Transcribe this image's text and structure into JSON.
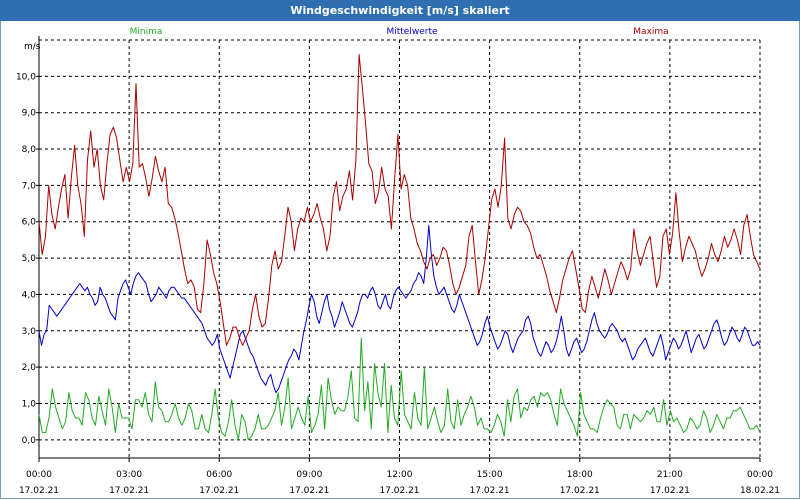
{
  "window": {
    "title": "Windgeschwindigkeit [m/s] skaliert"
  },
  "chart_data": {
    "type": "line",
    "ylabel": "m/s",
    "ylim": [
      -0.5,
      11.0
    ],
    "xlim": [
      0,
      24
    ],
    "grid": true,
    "yticks": [
      "0,0",
      "1,0",
      "2,0",
      "3,0",
      "4,0",
      "5,0",
      "6,0",
      "7,0",
      "8,0",
      "9,0",
      "10,0"
    ],
    "xticks": [
      {
        "time": "00:00",
        "date": "17.02.21"
      },
      {
        "time": "03:00",
        "date": "17.02.21"
      },
      {
        "time": "06:00",
        "date": "17.02.21"
      },
      {
        "time": "09:00",
        "date": "17.02.21"
      },
      {
        "time": "12:00",
        "date": "17.02.21"
      },
      {
        "time": "15:00",
        "date": "17.02.21"
      },
      {
        "time": "18:00",
        "date": "17.02.21"
      },
      {
        "time": "21:00",
        "date": "17.02.21"
      },
      {
        "time": "00:00",
        "date": "18.02.21"
      }
    ],
    "series": [
      {
        "name": "Minima",
        "color": "#22aa22",
        "values": [
          0.7,
          0.2,
          0.2,
          0.6,
          1.4,
          0.9,
          0.6,
          0.3,
          0.5,
          1.3,
          0.8,
          0.6,
          0.6,
          0.4,
          1.3,
          1.1,
          0.6,
          0.4,
          1.2,
          0.8,
          0.4,
          1.4,
          0.9,
          0.2,
          1.0,
          0.6,
          0.6,
          0.6,
          0.3,
          1.1,
          1.1,
          0.9,
          1.3,
          0.7,
          0.5,
          1.6,
          0.9,
          0.8,
          0.5,
          0.5,
          0.7,
          1.0,
          0.6,
          0.4,
          0.6,
          1.0,
          0.8,
          0.3,
          0.3,
          0.7,
          0.3,
          0.2,
          0.7,
          1.4,
          0.6,
          0.2,
          0.1,
          0.5,
          1.1,
          0.4,
          0.0,
          0.7,
          0.5,
          0.0,
          0.1,
          0.3,
          0.7,
          0.3,
          0.3,
          0.4,
          0.6,
          0.8,
          1.3,
          0.4,
          0.9,
          1.7,
          0.3,
          0.6,
          0.9,
          0.6,
          0.4,
          1.2,
          0.2,
          0.4,
          0.7,
          1.5,
          0.3,
          1.7,
          1.1,
          0.7,
          0.9,
          0.8,
          0.8,
          1.2,
          1.9,
          0.6,
          0.5,
          2.8,
          0.8,
          1.6,
          0.3,
          2.1,
          1.3,
          0.9,
          2.1,
          0.2,
          1.5,
          0.6,
          0.4,
          1.9,
          0.7,
          0.5,
          0.3,
          1.3,
          0.6,
          0.4,
          2.0,
          0.3,
          0.6,
          0.9,
          0.5,
          0.2,
          0.4,
          1.4,
          0.5,
          0.3,
          1.1,
          0.4,
          0.7,
          0.9,
          1.2,
          0.9,
          0.4,
          0.6,
          0.3,
          0.3,
          0.2,
          0.4,
          0.7,
          0.5,
          0.1,
          1.1,
          0.5,
          1.2,
          1.4,
          0.6,
          0.9,
          0.8,
          1.1,
          1.2,
          0.9,
          1.3,
          1.2,
          1.3,
          1.1,
          0.7,
          0.4,
          1.4,
          1.0,
          0.8,
          0.6,
          0.4,
          0.1,
          1.3,
          0.7,
          0.5,
          0.3,
          0.3,
          0.2,
          0.6,
          0.9,
          1.1,
          1.0,
          0.9,
          0.4,
          0.3,
          0.7,
          0.7,
          0.3,
          0.7,
          0.6,
          0.5,
          0.6,
          0.8,
          0.7,
          0.9,
          0.5,
          0.5,
          1.1,
          0.4,
          0.8,
          0.5,
          0.6,
          0.4,
          0.2,
          0.3,
          0.6,
          0.5,
          0.3,
          0.4,
          0.8,
          0.6,
          0.2,
          0.4,
          0.7,
          0.5,
          0.3,
          0.6,
          0.6,
          0.8,
          0.8,
          0.9,
          0.7,
          0.5,
          0.3,
          0.3,
          0.4,
          0.2
        ]
      },
      {
        "name": "Mittelwerte",
        "color": "#0000cc",
        "values": [
          3.0,
          2.6,
          2.9,
          3.0,
          3.7,
          3.6,
          3.5,
          3.4,
          3.5,
          3.6,
          3.7,
          3.8,
          3.9,
          4.0,
          4.1,
          4.2,
          4.3,
          4.2,
          4.1,
          4.2,
          4.0,
          3.9,
          3.7,
          3.8,
          4.2,
          4.0,
          3.9,
          3.7,
          3.5,
          3.4,
          3.3,
          3.9,
          4.1,
          4.3,
          4.4,
          4.2,
          4.0,
          4.3,
          4.5,
          4.6,
          4.5,
          4.4,
          4.3,
          4.0,
          3.8,
          3.9,
          4.0,
          4.2,
          4.1,
          4.0,
          3.9,
          4.1,
          4.2,
          4.2,
          4.1,
          4.0,
          3.9,
          3.9,
          3.8,
          3.7,
          3.6,
          3.5,
          3.4,
          3.3,
          3.2,
          3.0,
          2.8,
          2.7,
          2.6,
          2.7,
          2.9,
          2.5,
          2.3,
          2.1,
          1.9,
          1.7,
          2.0,
          2.3,
          2.6,
          2.9,
          3.0,
          2.8,
          2.6,
          2.4,
          2.3,
          2.1,
          1.9,
          1.7,
          1.6,
          1.5,
          1.7,
          1.8,
          1.5,
          1.3,
          1.4,
          1.6,
          1.8,
          2.0,
          2.2,
          2.3,
          2.5,
          2.4,
          2.2,
          2.6,
          3.0,
          3.3,
          3.7,
          4.0,
          3.8,
          3.4,
          3.2,
          3.5,
          3.8,
          4.0,
          3.6,
          3.4,
          3.1,
          3.3,
          3.5,
          3.8,
          3.6,
          3.4,
          3.2,
          3.1,
          3.3,
          3.5,
          3.8,
          4.0,
          4.0,
          3.9,
          4.1,
          4.2,
          4.0,
          3.7,
          3.6,
          3.8,
          4.0,
          3.7,
          3.6,
          3.9,
          4.1,
          4.2,
          4.1,
          4.0,
          3.9,
          4.0,
          4.1,
          4.3,
          4.4,
          4.6,
          4.5,
          4.3,
          5.0,
          5.9,
          5.1,
          4.5,
          4.2,
          4.0,
          4.1,
          4.2,
          4.0,
          3.8,
          3.6,
          3.5,
          3.7,
          4.0,
          3.8,
          3.6,
          3.4,
          3.2,
          3.0,
          2.8,
          2.6,
          2.7,
          2.9,
          3.2,
          3.4,
          3.1,
          2.9,
          2.7,
          2.5,
          2.6,
          2.8,
          3.0,
          2.9,
          2.6,
          2.4,
          2.6,
          2.8,
          2.9,
          3.0,
          3.3,
          3.4,
          3.2,
          2.8,
          2.6,
          2.4,
          2.3,
          2.5,
          2.7,
          2.6,
          2.4,
          2.5,
          2.7,
          3.0,
          3.4,
          3.0,
          2.5,
          2.3,
          2.5,
          2.7,
          2.8,
          2.6,
          2.4,
          2.5,
          2.7,
          3.0,
          3.3,
          3.5,
          3.2,
          3.0,
          2.9,
          2.8,
          2.9,
          3.1,
          3.2,
          3.1,
          3.0,
          2.8,
          2.7,
          2.8,
          2.6,
          2.4,
          2.2,
          2.3,
          2.5,
          2.6,
          2.7,
          2.8,
          2.6,
          2.4,
          2.3,
          2.5,
          2.7,
          2.9,
          2.6,
          2.2,
          2.4,
          2.6,
          2.8,
          2.7,
          2.5,
          2.6,
          2.8,
          3.0,
          2.7,
          2.4,
          2.6,
          2.8,
          2.9,
          2.7,
          2.5,
          2.6,
          2.8,
          3.0,
          3.2,
          3.3,
          3.1,
          2.8,
          2.6,
          2.7,
          2.9,
          3.1,
          3.0,
          2.8,
          2.7,
          2.9,
          3.1,
          3.0,
          2.8,
          2.6,
          2.6,
          2.7,
          2.6
        ]
      },
      {
        "name": "Maxima",
        "color": "#aa0000",
        "values": [
          6.0,
          5.1,
          5.6,
          7.0,
          6.2,
          5.8,
          6.4,
          6.9,
          7.3,
          6.1,
          7.2,
          8.1,
          7.0,
          6.5,
          5.6,
          7.7,
          8.5,
          7.5,
          8.0,
          7.0,
          6.6,
          7.6,
          8.4,
          8.6,
          8.3,
          7.7,
          7.1,
          7.5,
          7.1,
          7.6,
          9.8,
          7.5,
          7.6,
          7.2,
          6.7,
          7.2,
          7.8,
          7.4,
          7.1,
          7.5,
          6.5,
          6.4,
          6.1,
          5.7,
          5.2,
          4.7,
          4.3,
          4.4,
          4.2,
          3.6,
          3.5,
          4.3,
          5.5,
          5.1,
          4.6,
          4.3,
          3.8,
          3.2,
          2.6,
          2.8,
          3.1,
          3.1,
          2.8,
          2.6,
          2.8,
          3.0,
          3.6,
          4.0,
          3.4,
          3.1,
          3.2,
          3.9,
          4.8,
          5.2,
          4.7,
          4.9,
          5.6,
          6.4,
          6.0,
          5.2,
          5.8,
          6.1,
          6.0,
          6.4,
          6.0,
          6.2,
          6.5,
          6.1,
          5.8,
          5.2,
          5.6,
          6.7,
          7.1,
          6.3,
          6.7,
          6.9,
          7.4,
          6.6,
          7.7,
          10.6,
          9.7,
          8.7,
          7.6,
          7.4,
          6.5,
          6.8,
          7.5,
          6.9,
          6.7,
          5.8,
          7.2,
          8.4,
          6.9,
          7.3,
          7.0,
          6.1,
          5.8,
          5.4,
          5.2,
          4.9,
          4.7,
          5.0,
          5.1,
          4.8,
          5.0,
          5.3,
          5.2,
          4.8,
          4.3,
          4.0,
          4.2,
          4.5,
          4.8,
          5.6,
          5.9,
          4.9,
          4.0,
          4.4,
          5.0,
          5.8,
          6.6,
          6.9,
          6.4,
          7.0,
          8.3,
          6.1,
          5.8,
          6.2,
          6.4,
          6.3,
          6.0,
          5.9,
          5.7,
          5.3,
          5.0,
          5.1,
          4.8,
          4.5,
          4.1,
          3.8,
          3.5,
          3.9,
          4.4,
          4.7,
          5.0,
          5.2,
          4.7,
          4.2,
          3.6,
          3.5,
          4.1,
          4.5,
          4.2,
          3.9,
          4.3,
          4.7,
          4.4,
          4.0,
          4.3,
          4.6,
          4.9,
          4.7,
          4.4,
          4.7,
          5.8,
          5.2,
          4.8,
          5.1,
          5.4,
          5.6,
          4.9,
          4.2,
          4.5,
          5.6,
          5.8,
          5.1,
          5.7,
          6.8,
          5.7,
          4.9,
          5.3,
          5.6,
          5.4,
          5.2,
          4.8,
          4.5,
          4.7,
          5.0,
          5.4,
          5.1,
          4.9,
          5.2,
          5.6,
          5.3,
          5.5,
          5.8,
          5.5,
          5.1,
          5.9,
          6.2,
          5.6,
          5.1,
          4.9,
          4.7
        ]
      }
    ]
  }
}
